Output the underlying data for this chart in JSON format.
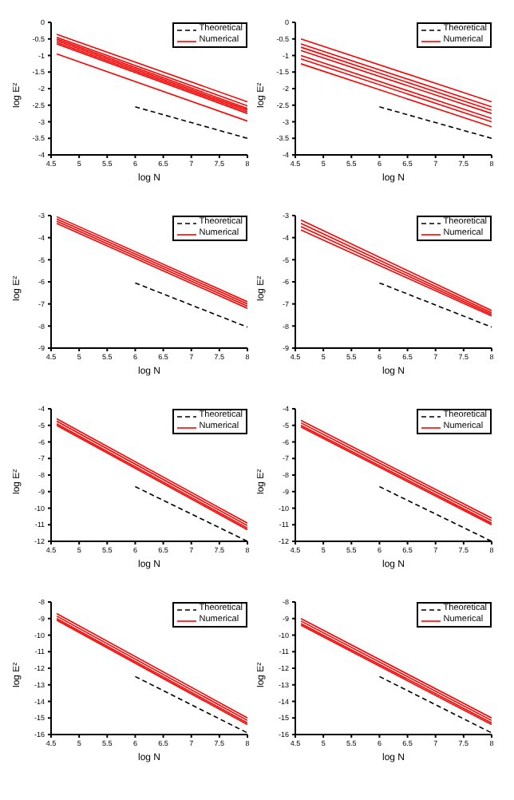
{
  "chart_data": [
    {
      "type": "line",
      "xlabel": "log N",
      "ylabel": "log E²",
      "xlim": [
        4.5,
        8
      ],
      "xticks": [
        4.5,
        5,
        5.5,
        6,
        6.5,
        7,
        7.5,
        8
      ],
      "ylim": [
        -4,
        0
      ],
      "yticks": [
        -4,
        -3.5,
        -3,
        -2.5,
        -2,
        -1.5,
        -1,
        -0.5,
        0
      ],
      "legend": "top right",
      "marker": "none",
      "grid": false,
      "series": [
        {
          "name": "Theoretical",
          "color": "#000000",
          "line_style": "dashed",
          "x": [
            6,
            8
          ],
          "values": [
            -2.55,
            -3.5
          ]
        },
        {
          "name": "Numerical",
          "color": "#ff0000",
          "x": [
            4.6,
            8
          ],
          "values": [
            -0.36,
            -2.4
          ]
        },
        {
          "color": "#ff0000",
          "x": [
            4.6,
            8
          ],
          "values": [
            -0.45,
            -2.52
          ]
        },
        {
          "color": "#ff0000",
          "x": [
            4.6,
            8
          ],
          "values": [
            -0.5,
            -2.6
          ]
        },
        {
          "color": "#ff0000",
          "x": [
            4.6,
            8
          ],
          "values": [
            -0.55,
            -2.65
          ]
        },
        {
          "color": "#ff0000",
          "x": [
            4.6,
            8
          ],
          "values": [
            -0.6,
            -2.7
          ]
        },
        {
          "color": "#ff0000",
          "x": [
            4.6,
            8
          ],
          "values": [
            -0.65,
            -2.75
          ]
        },
        {
          "color": "#ff0000",
          "x": [
            4.6,
            8
          ],
          "values": [
            -0.95,
            -2.98
          ]
        }
      ]
    },
    {
      "type": "line",
      "xlabel": "log N",
      "ylabel": "log E²",
      "xlim": [
        4.5,
        8
      ],
      "xticks": [
        4.5,
        5,
        5.5,
        6,
        6.5,
        7,
        7.5,
        8
      ],
      "ylim": [
        -4,
        0
      ],
      "yticks": [
        -4,
        -3.5,
        -3,
        -2.5,
        -2,
        -1.5,
        -1,
        -0.5,
        0
      ],
      "legend": "top right",
      "marker": "none",
      "grid": false,
      "series": [
        {
          "name": "Theoretical",
          "color": "#000000",
          "line_style": "dashed",
          "x": [
            6,
            8
          ],
          "values": [
            -2.55,
            -3.5
          ]
        },
        {
          "name": "Numerical",
          "color": "#ff0000",
          "x": [
            4.6,
            8
          ],
          "values": [
            -0.5,
            -2.4
          ]
        },
        {
          "color": "#ff0000",
          "x": [
            4.6,
            8
          ],
          "values": [
            -0.65,
            -2.55
          ]
        },
        {
          "color": "#ff0000",
          "x": [
            4.6,
            8
          ],
          "values": [
            -0.75,
            -2.65
          ]
        },
        {
          "color": "#ff0000",
          "x": [
            4.6,
            8
          ],
          "values": [
            -0.85,
            -2.75
          ]
        },
        {
          "color": "#ff0000",
          "x": [
            4.6,
            8
          ],
          "values": [
            -1.0,
            -2.9
          ]
        },
        {
          "color": "#ff0000",
          "x": [
            4.6,
            8
          ],
          "values": [
            -1.1,
            -3.0
          ]
        },
        {
          "color": "#ff0000",
          "x": [
            4.6,
            8
          ],
          "values": [
            -1.25,
            -3.15
          ]
        }
      ]
    },
    {
      "type": "line",
      "xlabel": "log N",
      "ylabel": "log E²",
      "xlim": [
        4.5,
        8
      ],
      "xticks": [
        4.5,
        5,
        5.5,
        6,
        6.5,
        7,
        7.5,
        8
      ],
      "ylim": [
        -9,
        -3
      ],
      "yticks": [
        -9,
        -8,
        -7,
        -6,
        -5,
        -4,
        -3
      ],
      "legend": "top right",
      "marker": "none",
      "grid": false,
      "series": [
        {
          "name": "Theoretical",
          "color": "#000000",
          "line_style": "dashed",
          "x": [
            6,
            8
          ],
          "values": [
            -6.05,
            -8.05
          ]
        },
        {
          "name": "Numerical",
          "color": "#ff0000",
          "x": [
            4.6,
            8
          ],
          "values": [
            -3.05,
            -6.9
          ]
        },
        {
          "color": "#ff0000",
          "x": [
            4.6,
            8
          ],
          "values": [
            -3.15,
            -7.0
          ]
        },
        {
          "color": "#ff0000",
          "x": [
            4.6,
            8
          ],
          "values": [
            -3.25,
            -7.1
          ]
        },
        {
          "color": "#ff0000",
          "x": [
            4.6,
            8
          ],
          "values": [
            -3.35,
            -7.2
          ]
        }
      ]
    },
    {
      "type": "line",
      "xlabel": "log N",
      "ylabel": "log E²",
      "xlim": [
        4.5,
        8
      ],
      "xticks": [
        4.5,
        5,
        5.5,
        6,
        6.5,
        7,
        7.5,
        8
      ],
      "ylim": [
        -9,
        -3
      ],
      "yticks": [
        -9,
        -8,
        -7,
        -6,
        -5,
        -4,
        -3
      ],
      "legend": "top right",
      "marker": "none",
      "grid": false,
      "series": [
        {
          "name": "Theoretical",
          "color": "#000000",
          "line_style": "dashed",
          "x": [
            6,
            8
          ],
          "values": [
            -6.05,
            -8.05
          ]
        },
        {
          "name": "Numerical",
          "color": "#ff0000",
          "x": [
            4.6,
            8
          ],
          "values": [
            -3.2,
            -7.3
          ]
        },
        {
          "color": "#ff0000",
          "x": [
            4.6,
            8
          ],
          "values": [
            -3.35,
            -7.4
          ]
        },
        {
          "color": "#ff0000",
          "x": [
            4.6,
            8
          ],
          "values": [
            -3.5,
            -7.48
          ]
        },
        {
          "color": "#ff0000",
          "x": [
            4.6,
            8
          ],
          "values": [
            -3.65,
            -7.55
          ]
        }
      ]
    },
    {
      "type": "line",
      "xlabel": "log N",
      "ylabel": "log E²",
      "xlim": [
        4.5,
        8
      ],
      "xticks": [
        4.5,
        5,
        5.5,
        6,
        6.5,
        7,
        7.5,
        8
      ],
      "ylim": [
        -12,
        -4
      ],
      "yticks": [
        -12,
        -11,
        -10,
        -9,
        -8,
        -7,
        -6,
        -5,
        -4
      ],
      "legend": "top right",
      "marker": "none",
      "grid": false,
      "series": [
        {
          "name": "Theoretical",
          "color": "#000000",
          "line_style": "dashed",
          "x": [
            6,
            8
          ],
          "values": [
            -8.7,
            -12
          ]
        },
        {
          "name": "Numerical",
          "color": "#ff0000",
          "x": [
            4.6,
            8
          ],
          "values": [
            -4.6,
            -10.9
          ]
        },
        {
          "color": "#ff0000",
          "x": [
            4.6,
            8
          ],
          "values": [
            -4.75,
            -11.05
          ]
        },
        {
          "color": "#ff0000",
          "x": [
            4.6,
            8
          ],
          "values": [
            -4.9,
            -11.2
          ]
        },
        {
          "color": "#ff0000",
          "x": [
            4.6,
            8
          ],
          "values": [
            -5.0,
            -11.3
          ]
        }
      ]
    },
    {
      "type": "line",
      "xlabel": "log N",
      "ylabel": "log E²",
      "xlim": [
        4.5,
        8
      ],
      "xticks": [
        4.5,
        5,
        5.5,
        6,
        6.5,
        7,
        7.5,
        8
      ],
      "ylim": [
        -12,
        -4
      ],
      "yticks": [
        -12,
        -11,
        -10,
        -9,
        -8,
        -7,
        -6,
        -5,
        -4
      ],
      "legend": "top right",
      "marker": "none",
      "grid": false,
      "series": [
        {
          "name": "Theoretical",
          "color": "#000000",
          "line_style": "dashed",
          "x": [
            6,
            8
          ],
          "values": [
            -8.7,
            -12
          ]
        },
        {
          "name": "Numerical",
          "color": "#ff0000",
          "x": [
            4.6,
            8
          ],
          "values": [
            -4.7,
            -10.6
          ]
        },
        {
          "color": "#ff0000",
          "x": [
            4.6,
            8
          ],
          "values": [
            -4.85,
            -10.75
          ]
        },
        {
          "color": "#ff0000",
          "x": [
            4.6,
            8
          ],
          "values": [
            -5.0,
            -10.9
          ]
        },
        {
          "color": "#ff0000",
          "x": [
            4.6,
            8
          ],
          "values": [
            -5.1,
            -11.0
          ]
        }
      ]
    },
    {
      "type": "line",
      "xlabel": "log N",
      "ylabel": "log E²",
      "xlim": [
        4.5,
        8
      ],
      "xticks": [
        4.5,
        5,
        5.5,
        6,
        6.5,
        7,
        7.5,
        8
      ],
      "ylim": [
        -16,
        -8
      ],
      "yticks": [
        -16,
        -15,
        -14,
        -13,
        -12,
        -11,
        -10,
        -9,
        -8
      ],
      "legend": "top right",
      "marker": "none",
      "grid": false,
      "series": [
        {
          "name": "Theoretical",
          "color": "#000000",
          "line_style": "dashed",
          "x": [
            6,
            8
          ],
          "values": [
            -12.5,
            -15.9
          ]
        },
        {
          "name": "Numerical",
          "color": "#ff0000",
          "x": [
            4.6,
            8
          ],
          "values": [
            -8.7,
            -15.0
          ]
        },
        {
          "color": "#ff0000",
          "x": [
            4.6,
            8
          ],
          "values": [
            -8.85,
            -15.15
          ]
        },
        {
          "color": "#ff0000",
          "x": [
            4.6,
            8
          ],
          "values": [
            -9.0,
            -15.3
          ]
        },
        {
          "color": "#ff0000",
          "x": [
            4.6,
            8
          ],
          "values": [
            -9.1,
            -15.4
          ]
        }
      ]
    },
    {
      "type": "line",
      "xlabel": "log N",
      "ylabel": "log E²",
      "xlim": [
        4.5,
        8
      ],
      "xticks": [
        4.5,
        5,
        5.5,
        6,
        6.5,
        7,
        7.5,
        8
      ],
      "ylim": [
        -16,
        -8
      ],
      "yticks": [
        -16,
        -15,
        -14,
        -13,
        -12,
        -11,
        -10,
        -9,
        -8
      ],
      "legend": "top right",
      "marker": "none",
      "grid": false,
      "series": [
        {
          "name": "Theoretical",
          "color": "#000000",
          "line_style": "dashed",
          "x": [
            6,
            8
          ],
          "values": [
            -12.5,
            -15.9
          ]
        },
        {
          "name": "Numerical",
          "color": "#ff0000",
          "x": [
            4.6,
            8
          ],
          "values": [
            -9.0,
            -15.0
          ]
        },
        {
          "color": "#ff0000",
          "x": [
            4.6,
            8
          ],
          "values": [
            -9.15,
            -15.15
          ]
        },
        {
          "color": "#ff0000",
          "x": [
            4.6,
            8
          ],
          "values": [
            -9.3,
            -15.3
          ]
        },
        {
          "color": "#ff0000",
          "x": [
            4.6,
            8
          ],
          "values": [
            -9.4,
            -15.4
          ]
        }
      ]
    }
  ]
}
